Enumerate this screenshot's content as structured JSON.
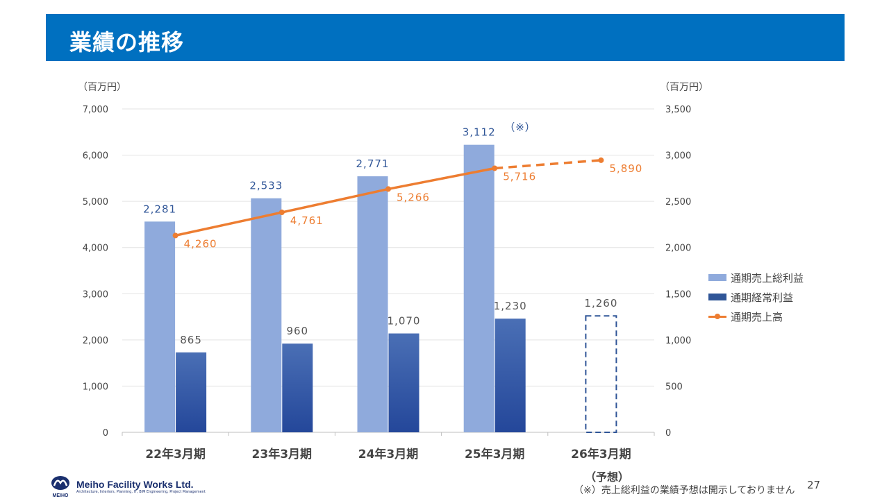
{
  "title": "業績の推移",
  "unit_left": "（百万円）",
  "unit_right": "（百万円）",
  "note_mark": "（※）",
  "forecast_label": "（予想）",
  "footnote": "（※）売上総利益の業績予想は開示しておりません",
  "page_number": "27",
  "logo": {
    "name": "Meiho Facility Works Ltd.",
    "tagline": "Architecture, Interiors, Planning, IT, BIM Engineering, Project Management",
    "mark_text": "MEIHO"
  },
  "colors": {
    "header": "#0070c0",
    "gross_profit": "#8faadc",
    "ordinary_profit": "#2f5597",
    "net_sales": "#ed7d31"
  },
  "chart_data": {
    "type": "bar",
    "categories": [
      "22年3月期",
      "23年3月期",
      "24年3月期",
      "25年3月期",
      "26年3月期"
    ],
    "left_axis": {
      "range": [
        0,
        7000
      ],
      "ticks": [
        "0",
        "1,000",
        "2,000",
        "3,000",
        "4,000",
        "5,000",
        "6,000",
        "7,000"
      ]
    },
    "right_axis": {
      "range": [
        0,
        3500
      ],
      "ticks": [
        "0",
        "500",
        "1,000",
        "1,500",
        "2,000",
        "2,500",
        "3,000",
        "3,500"
      ]
    },
    "series": [
      {
        "name": "通期売上総利益",
        "type": "bar",
        "axis": "right",
        "values": [
          2281,
          2533,
          2771,
          3112,
          null
        ],
        "labels": [
          "2,281",
          "2,533",
          "2,771",
          "3,112",
          ""
        ]
      },
      {
        "name": "通期経常利益",
        "type": "bar",
        "axis": "right",
        "values": [
          865,
          960,
          1070,
          1230,
          1260
        ],
        "labels": [
          "865",
          "960",
          "1,070",
          "1,230",
          "1,260"
        ],
        "forecast_index": 4
      },
      {
        "name": "通期売上高",
        "type": "line",
        "axis": "left",
        "values": [
          4260,
          4761,
          5266,
          5716,
          5890
        ],
        "labels": [
          "4,260",
          "4,761",
          "5,266",
          "5,716",
          "5,890"
        ],
        "forecast_index": 4
      }
    ],
    "legend_position": "right",
    "grid": true
  }
}
